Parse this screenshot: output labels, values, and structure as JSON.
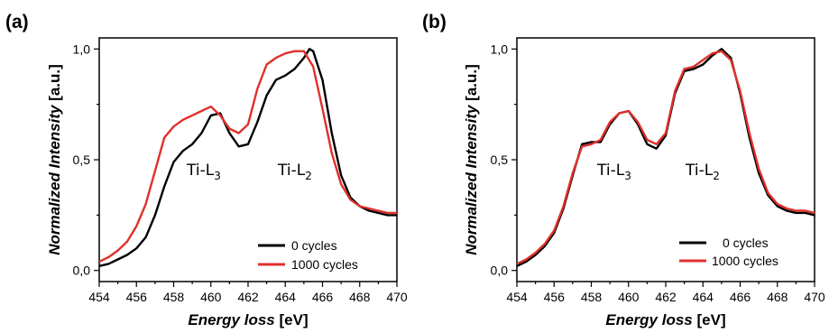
{
  "chart_data": [
    {
      "panel_label": "(a)",
      "type": "line",
      "xlabel_bold_italic": "Energy loss",
      "xlabel_unit": "[eV]",
      "ylabel_bold_italic": "Normalized Intensity",
      "ylabel_unit": "[a.u.]",
      "xlim": [
        454,
        470
      ],
      "ylim": [
        -0.05,
        1.05
      ],
      "xticks": [
        "454",
        "456",
        "458",
        "460",
        "462",
        "464",
        "466",
        "468",
        "470"
      ],
      "yticks": [
        "0,0",
        "0,5",
        "1,0"
      ],
      "ytick_values": [
        0.0,
        0.5,
        1.0
      ],
      "grid": false,
      "legend_position": "bottom-right",
      "annotations": [
        {
          "text": "Ti-L",
          "sub": "3",
          "x": 458.3,
          "y": 0.5
        },
        {
          "text": "Ti-L",
          "sub": "2",
          "x": 463.2,
          "y": 0.5
        }
      ],
      "series": [
        {
          "name": "0 cycles",
          "color": "#000000",
          "x": [
            454.0,
            454.5,
            455.0,
            455.5,
            456.0,
            456.5,
            457.0,
            457.5,
            458.0,
            458.5,
            459.0,
            459.5,
            460.0,
            460.5,
            461.0,
            461.5,
            462.0,
            462.5,
            463.0,
            463.5,
            464.0,
            464.5,
            465.0,
            465.3,
            465.5,
            466.0,
            466.5,
            467.0,
            467.5,
            468.0,
            468.5,
            469.0,
            469.5,
            470.0
          ],
          "y": [
            0.02,
            0.03,
            0.05,
            0.07,
            0.1,
            0.15,
            0.25,
            0.38,
            0.49,
            0.54,
            0.57,
            0.62,
            0.7,
            0.71,
            0.62,
            0.56,
            0.57,
            0.67,
            0.79,
            0.86,
            0.88,
            0.91,
            0.96,
            1.0,
            0.99,
            0.86,
            0.62,
            0.43,
            0.33,
            0.29,
            0.27,
            0.26,
            0.25,
            0.25
          ]
        },
        {
          "name": "1000 cycles",
          "color": "#e0302b",
          "x": [
            454.0,
            454.5,
            455.0,
            455.5,
            456.0,
            456.5,
            457.0,
            457.5,
            458.0,
            458.5,
            459.0,
            459.5,
            460.0,
            460.5,
            461.0,
            461.5,
            462.0,
            462.5,
            463.0,
            463.5,
            464.0,
            464.5,
            465.0,
            465.5,
            466.0,
            466.5,
            467.0,
            467.5,
            468.0,
            468.5,
            469.0,
            469.5,
            470.0
          ],
          "y": [
            0.04,
            0.06,
            0.09,
            0.13,
            0.2,
            0.3,
            0.45,
            0.6,
            0.65,
            0.68,
            0.7,
            0.72,
            0.74,
            0.7,
            0.64,
            0.62,
            0.66,
            0.82,
            0.93,
            0.96,
            0.98,
            0.99,
            0.99,
            0.92,
            0.73,
            0.53,
            0.39,
            0.32,
            0.29,
            0.28,
            0.27,
            0.26,
            0.26
          ]
        }
      ]
    },
    {
      "panel_label": "(b)",
      "type": "line",
      "xlabel_bold_italic": "Energy loss",
      "xlabel_unit": "[eV]",
      "ylabel_bold_italic": "Normalized Intensity",
      "ylabel_unit": "[a.u.]",
      "xlim": [
        454,
        470
      ],
      "ylim": [
        -0.05,
        1.05
      ],
      "xticks": [
        "454",
        "456",
        "458",
        "460",
        "462",
        "464",
        "466",
        "468",
        "470"
      ],
      "yticks": [
        "0,0",
        "0,5",
        "1,0"
      ],
      "ytick_values": [
        0.0,
        0.5,
        1.0
      ],
      "grid": false,
      "legend_position": "bottom-right",
      "annotations": [
        {
          "text": "Ti-L",
          "sub": "3",
          "x": 458.3,
          "y": 0.5
        },
        {
          "text": "Ti-L",
          "sub": "2",
          "x": 463.2,
          "y": 0.5
        }
      ],
      "series": [
        {
          "name": "0 cycles",
          "color": "#000000",
          "x": [
            454.0,
            454.5,
            455.0,
            455.5,
            456.0,
            456.5,
            457.0,
            457.5,
            458.0,
            458.5,
            459.0,
            459.5,
            460.0,
            460.5,
            461.0,
            461.5,
            462.0,
            462.5,
            463.0,
            463.5,
            464.0,
            464.5,
            465.0,
            465.5,
            466.0,
            466.5,
            467.0,
            467.5,
            468.0,
            468.5,
            469.0,
            469.5,
            470.0
          ],
          "y": [
            0.02,
            0.04,
            0.07,
            0.11,
            0.17,
            0.28,
            0.43,
            0.57,
            0.58,
            0.58,
            0.66,
            0.71,
            0.72,
            0.66,
            0.57,
            0.55,
            0.61,
            0.8,
            0.9,
            0.91,
            0.93,
            0.97,
            1.0,
            0.96,
            0.8,
            0.6,
            0.44,
            0.34,
            0.29,
            0.27,
            0.26,
            0.26,
            0.25
          ]
        },
        {
          "name": "1000 cycles",
          "color": "#e0302b",
          "x": [
            454.0,
            454.5,
            455.0,
            455.5,
            456.0,
            456.5,
            457.0,
            457.5,
            458.0,
            458.5,
            459.0,
            459.5,
            460.0,
            460.5,
            461.0,
            461.5,
            462.0,
            462.5,
            463.0,
            463.5,
            464.0,
            464.5,
            465.0,
            465.5,
            466.0,
            466.5,
            467.0,
            467.5,
            468.0,
            468.5,
            469.0,
            469.5,
            470.0
          ],
          "y": [
            0.03,
            0.05,
            0.08,
            0.12,
            0.18,
            0.29,
            0.44,
            0.56,
            0.57,
            0.59,
            0.67,
            0.71,
            0.72,
            0.67,
            0.59,
            0.57,
            0.62,
            0.81,
            0.91,
            0.92,
            0.95,
            0.98,
            0.99,
            0.95,
            0.81,
            0.62,
            0.46,
            0.35,
            0.3,
            0.28,
            0.27,
            0.27,
            0.26
          ]
        }
      ]
    }
  ]
}
